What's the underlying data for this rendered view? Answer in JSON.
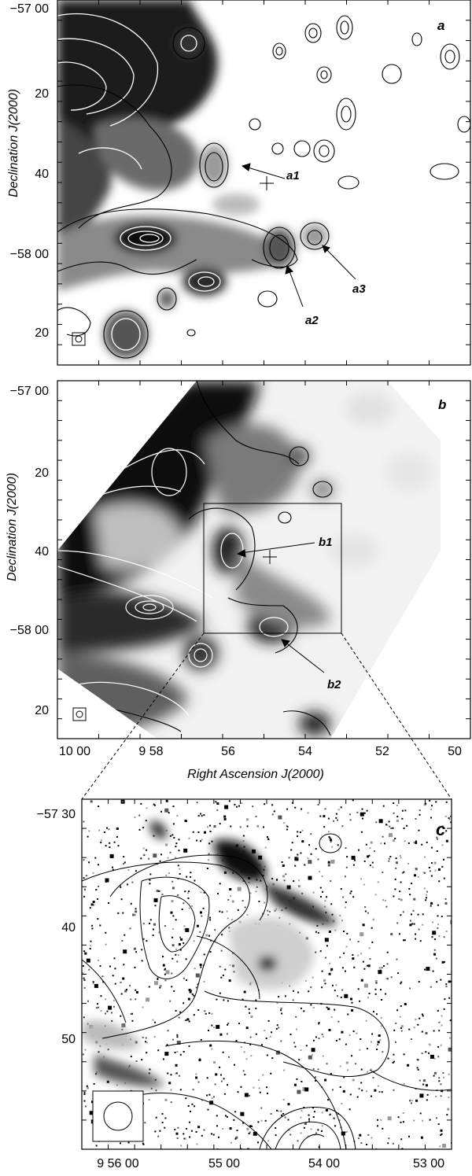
{
  "figure": {
    "panels": [
      {
        "id": "a",
        "label": "a",
        "ylabel": "Declination J(2000)",
        "yticks": [
          "−57 00",
          "20",
          "40",
          "−58 00",
          "20"
        ],
        "annotations": [
          "a1",
          "a2",
          "a3"
        ]
      },
      {
        "id": "b",
        "label": "b",
        "ylabel": "Declination J(2000)",
        "yticks": [
          "−57 00",
          "20",
          "40",
          "−58 00",
          "20"
        ],
        "xlabel": "Right Ascension J(2000)",
        "xticks": [
          "10 00",
          "9 58",
          "56",
          "54",
          "52",
          "50"
        ],
        "annotations": [
          "b1",
          "b2"
        ]
      },
      {
        "id": "c",
        "label": "c",
        "yticks": [
          "−57 30",
          "40",
          "50"
        ],
        "xticks": [
          "9 56 00",
          "55 00",
          "54 00",
          "53 00"
        ]
      }
    ]
  },
  "colors": {
    "ink": "#000000",
    "contour_light": "#ffffff",
    "dark_emission": "#111111",
    "mid_emission": "#7a7a7a",
    "light_emission": "#d4d4d4"
  }
}
